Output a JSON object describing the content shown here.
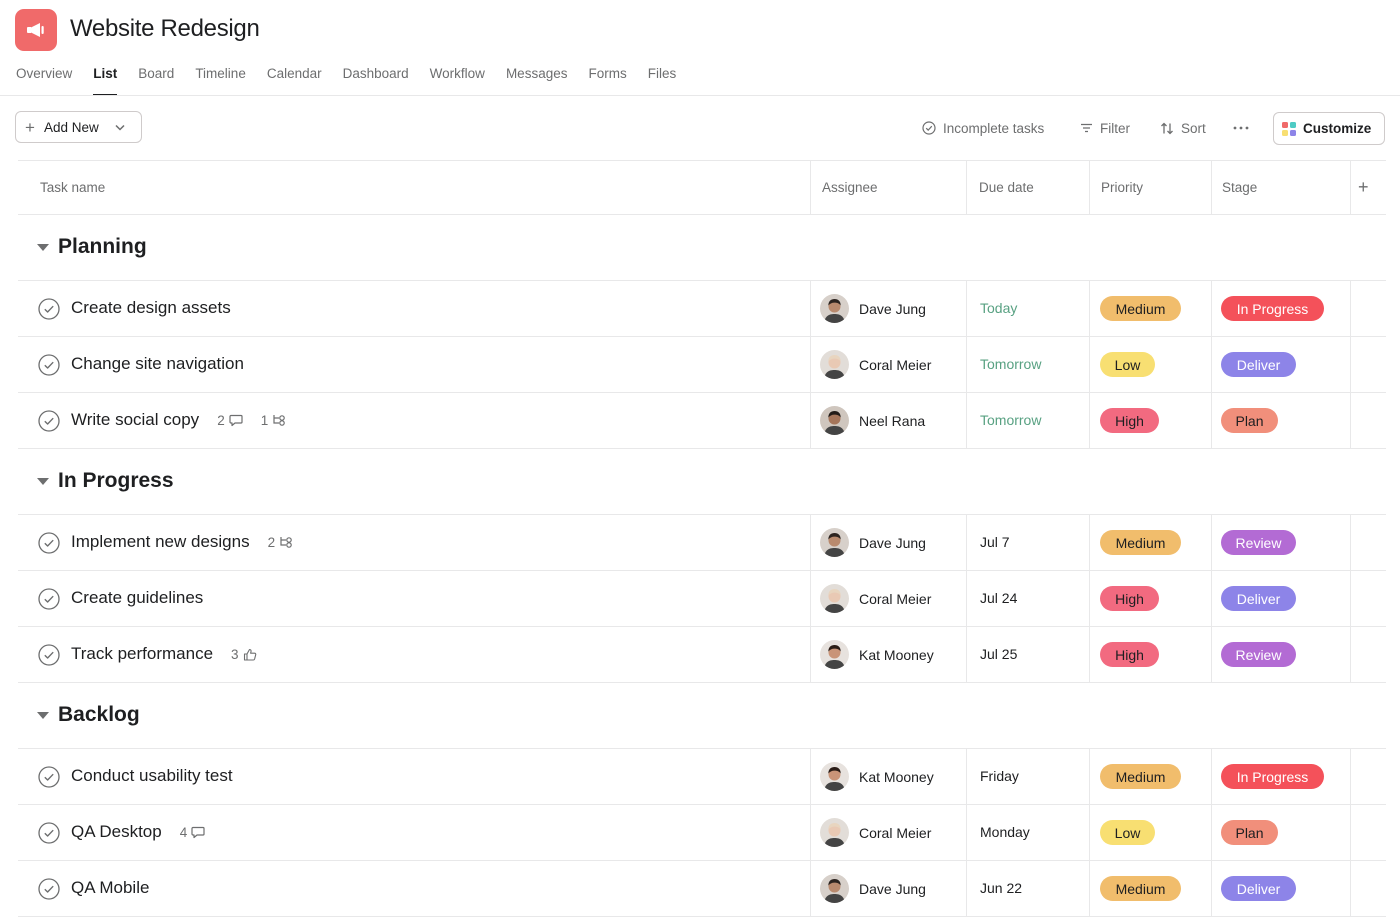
{
  "project": {
    "title": "Website Redesign",
    "icon": "megaphone-icon",
    "icon_color": "#f06a6a"
  },
  "tabs": [
    {
      "label": "Overview",
      "active": false
    },
    {
      "label": "List",
      "active": true
    },
    {
      "label": "Board",
      "active": false
    },
    {
      "label": "Timeline",
      "active": false
    },
    {
      "label": "Calendar",
      "active": false
    },
    {
      "label": "Dashboard",
      "active": false
    },
    {
      "label": "Workflow",
      "active": false
    },
    {
      "label": "Messages",
      "active": false
    },
    {
      "label": "Forms",
      "active": false
    },
    {
      "label": "Files",
      "active": false
    }
  ],
  "toolbar": {
    "add_new_label": "Add New",
    "incomplete_label": "Incomplete tasks",
    "filter_label": "Filter",
    "sort_label": "Sort",
    "customize_label": "Customize"
  },
  "columns": {
    "task": "Task name",
    "assignee": "Assignee",
    "due": "Due date",
    "priority": "Priority",
    "stage": "Stage"
  },
  "colors": {
    "priority": {
      "Medium": {
        "bg": "#f1bd6c",
        "fg": "#1e1f21"
      },
      "Low": {
        "bg": "#f8df72",
        "fg": "#1e1f21"
      },
      "High": {
        "bg": "#f26a80",
        "fg": "#1e1f21"
      }
    },
    "stage": {
      "In Progress": {
        "bg": "#f4515a",
        "fg": "#ffffff"
      },
      "Deliver": {
        "bg": "#8d84e8",
        "fg": "#ffffff"
      },
      "Plan": {
        "bg": "#f18f7b",
        "fg": "#1e1f21"
      },
      "Review": {
        "bg": "#b36bd4",
        "fg": "#ffffff"
      }
    },
    "due_soon": "#58a182"
  },
  "sections": [
    {
      "title": "Planning",
      "tasks": [
        {
          "name": "Create design assets",
          "assignee": "Dave Jung",
          "due": "Today",
          "due_soon": true,
          "priority": "Medium",
          "stage": "In Progress"
        },
        {
          "name": "Change site navigation",
          "assignee": "Coral Meier",
          "due": "Tomorrow",
          "due_soon": true,
          "priority": "Low",
          "stage": "Deliver"
        },
        {
          "name": "Write social copy",
          "assignee": "Neel Rana",
          "due": "Tomorrow",
          "due_soon": true,
          "priority": "High",
          "stage": "Plan",
          "meta": [
            {
              "count": "2",
              "icon": "comment-icon"
            },
            {
              "count": "1",
              "icon": "subtask-icon"
            }
          ]
        }
      ]
    },
    {
      "title": "In Progress",
      "tasks": [
        {
          "name": "Implement new designs",
          "assignee": "Dave Jung",
          "due": "Jul 7",
          "due_soon": false,
          "priority": "Medium",
          "stage": "Review",
          "meta": [
            {
              "count": "2",
              "icon": "subtask-icon"
            }
          ]
        },
        {
          "name": "Create guidelines",
          "assignee": "Coral Meier",
          "due": "Jul 24",
          "due_soon": false,
          "priority": "High",
          "stage": "Deliver"
        },
        {
          "name": "Track performance",
          "assignee": "Kat Mooney",
          "due": "Jul 25",
          "due_soon": false,
          "priority": "High",
          "stage": "Review",
          "meta": [
            {
              "count": "3",
              "icon": "like-icon"
            }
          ]
        }
      ]
    },
    {
      "title": "Backlog",
      "tasks": [
        {
          "name": "Conduct usability test",
          "assignee": "Kat Mooney",
          "due": "Friday",
          "due_soon": false,
          "priority": "Medium",
          "stage": "In Progress"
        },
        {
          "name": "QA Desktop",
          "assignee": "Coral Meier",
          "due": "Monday",
          "due_soon": false,
          "priority": "Low",
          "stage": "Plan",
          "meta": [
            {
              "count": "4",
              "icon": "comment-icon"
            }
          ]
        },
        {
          "name": "QA Mobile",
          "assignee": "Dave Jung",
          "due": "Jun 22",
          "due_soon": false,
          "priority": "Medium",
          "stage": "Deliver"
        }
      ]
    }
  ]
}
